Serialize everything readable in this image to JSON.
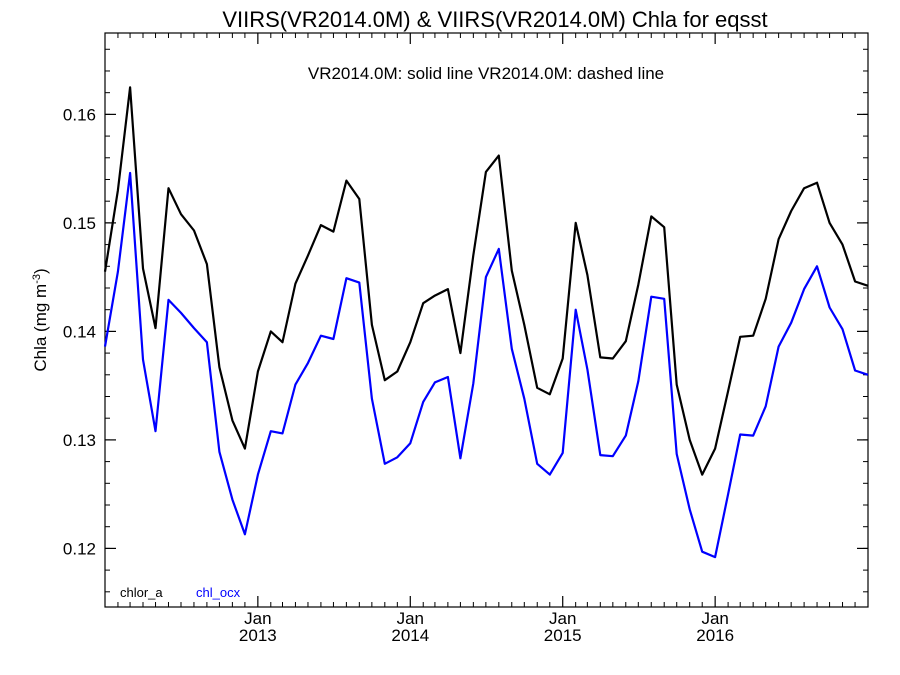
{
  "chart_data": {
    "type": "line",
    "title": "VIIRS(VR2014.0M) & VIIRS(VR2014.0M)  Chla for eqsst",
    "subtitle": "VR2014.0M: solid line   VR2014.0M: dashed line",
    "ylabel": "Chla (mg m",
    "ylabel_sup": "-3",
    "ylabel_close": ")",
    "ylim": [
      0.1146,
      0.1675
    ],
    "xlim": [
      "2012-01-01",
      "2017-01-01"
    ],
    "y_ticks": [
      {
        "value": 0.12,
        "label": "0.12"
      },
      {
        "value": 0.13,
        "label": "0.13"
      },
      {
        "value": 0.14,
        "label": "0.14"
      },
      {
        "value": 0.15,
        "label": "0.15"
      },
      {
        "value": 0.16,
        "label": "0.16"
      }
    ],
    "x_ticks": [
      {
        "date": "2013-01-01",
        "month": "Jan",
        "year": "2013"
      },
      {
        "date": "2014-01-01",
        "month": "Jan",
        "year": "2014"
      },
      {
        "date": "2015-01-01",
        "month": "Jan",
        "year": "2015"
      },
      {
        "date": "2016-01-01",
        "month": "Jan",
        "year": "2016"
      }
    ],
    "x": [
      "2012-01-01",
      "2012-02-01",
      "2012-03-01",
      "2012-04-01",
      "2012-05-01",
      "2012-06-01",
      "2012-07-01",
      "2012-08-01",
      "2012-09-01",
      "2012-10-01",
      "2012-11-01",
      "2012-12-01",
      "2013-01-01",
      "2013-02-01",
      "2013-03-01",
      "2013-04-01",
      "2013-05-01",
      "2013-06-01",
      "2013-07-01",
      "2013-08-01",
      "2013-09-01",
      "2013-10-01",
      "2013-11-01",
      "2013-12-01",
      "2014-01-01",
      "2014-02-01",
      "2014-03-01",
      "2014-04-01",
      "2014-05-01",
      "2014-06-01",
      "2014-07-01",
      "2014-08-01",
      "2014-09-01",
      "2014-10-01",
      "2014-11-01",
      "2014-12-01",
      "2015-01-01",
      "2015-02-01",
      "2015-03-01",
      "2015-04-01",
      "2015-05-01",
      "2015-06-01",
      "2015-07-01",
      "2015-08-01",
      "2015-09-01",
      "2015-10-01",
      "2015-11-01",
      "2015-12-01",
      "2016-01-01",
      "2016-02-01",
      "2016-03-01",
      "2016-04-01",
      "2016-05-01",
      "2016-06-01",
      "2016-07-01",
      "2016-08-01",
      "2016-09-01",
      "2016-10-01",
      "2016-11-01",
      "2016-12-01",
      "2017-01-01"
    ],
    "series": [
      {
        "name": "chlor_a",
        "color": "#000000",
        "values": [
          0.1455,
          0.153,
          0.1625,
          0.1458,
          0.1403,
          0.1532,
          0.1508,
          0.1493,
          0.1462,
          0.1367,
          0.1318,
          0.1292,
          0.1363,
          0.14,
          0.139,
          0.1444,
          0.147,
          0.1498,
          0.1492,
          0.1539,
          0.1522,
          0.1406,
          0.1355,
          0.1363,
          0.139,
          0.1426,
          0.1433,
          0.1439,
          0.138,
          0.147,
          0.1547,
          0.1562,
          0.1456,
          0.1406,
          0.1348,
          0.1342,
          0.1375,
          0.15,
          0.1452,
          0.1376,
          0.1375,
          0.1391,
          0.1443,
          0.1506,
          0.1496,
          0.1351,
          0.13,
          0.1268,
          0.1292,
          0.1345,
          0.1395,
          0.1396,
          0.143,
          0.1485,
          0.1511,
          0.1532,
          0.1537,
          0.15,
          0.148,
          0.1446,
          0.1442
        ]
      },
      {
        "name": "chl_ocx",
        "color": "#0000ff",
        "values": [
          0.1386,
          0.1455,
          0.1546,
          0.1374,
          0.1308,
          0.1429,
          0.1417,
          0.1403,
          0.139,
          0.1289,
          0.1245,
          0.1213,
          0.1268,
          0.1308,
          0.1306,
          0.1351,
          0.1371,
          0.1396,
          0.1393,
          0.1449,
          0.1445,
          0.1338,
          0.1278,
          0.1284,
          0.1297,
          0.1335,
          0.1353,
          0.1358,
          0.1283,
          0.1352,
          0.145,
          0.1476,
          0.1384,
          0.1338,
          0.1278,
          0.1268,
          0.1288,
          0.142,
          0.1365,
          0.1286,
          0.1285,
          0.1304,
          0.1354,
          0.1432,
          0.143,
          0.1287,
          0.1236,
          0.1197,
          0.1192,
          0.125,
          0.1305,
          0.1304,
          0.1331,
          0.1386,
          0.1408,
          0.1439,
          0.146,
          0.1422,
          0.1402,
          0.1364,
          0.136
        ]
      }
    ],
    "grid": false,
    "legend_placement": "bottom-left"
  }
}
